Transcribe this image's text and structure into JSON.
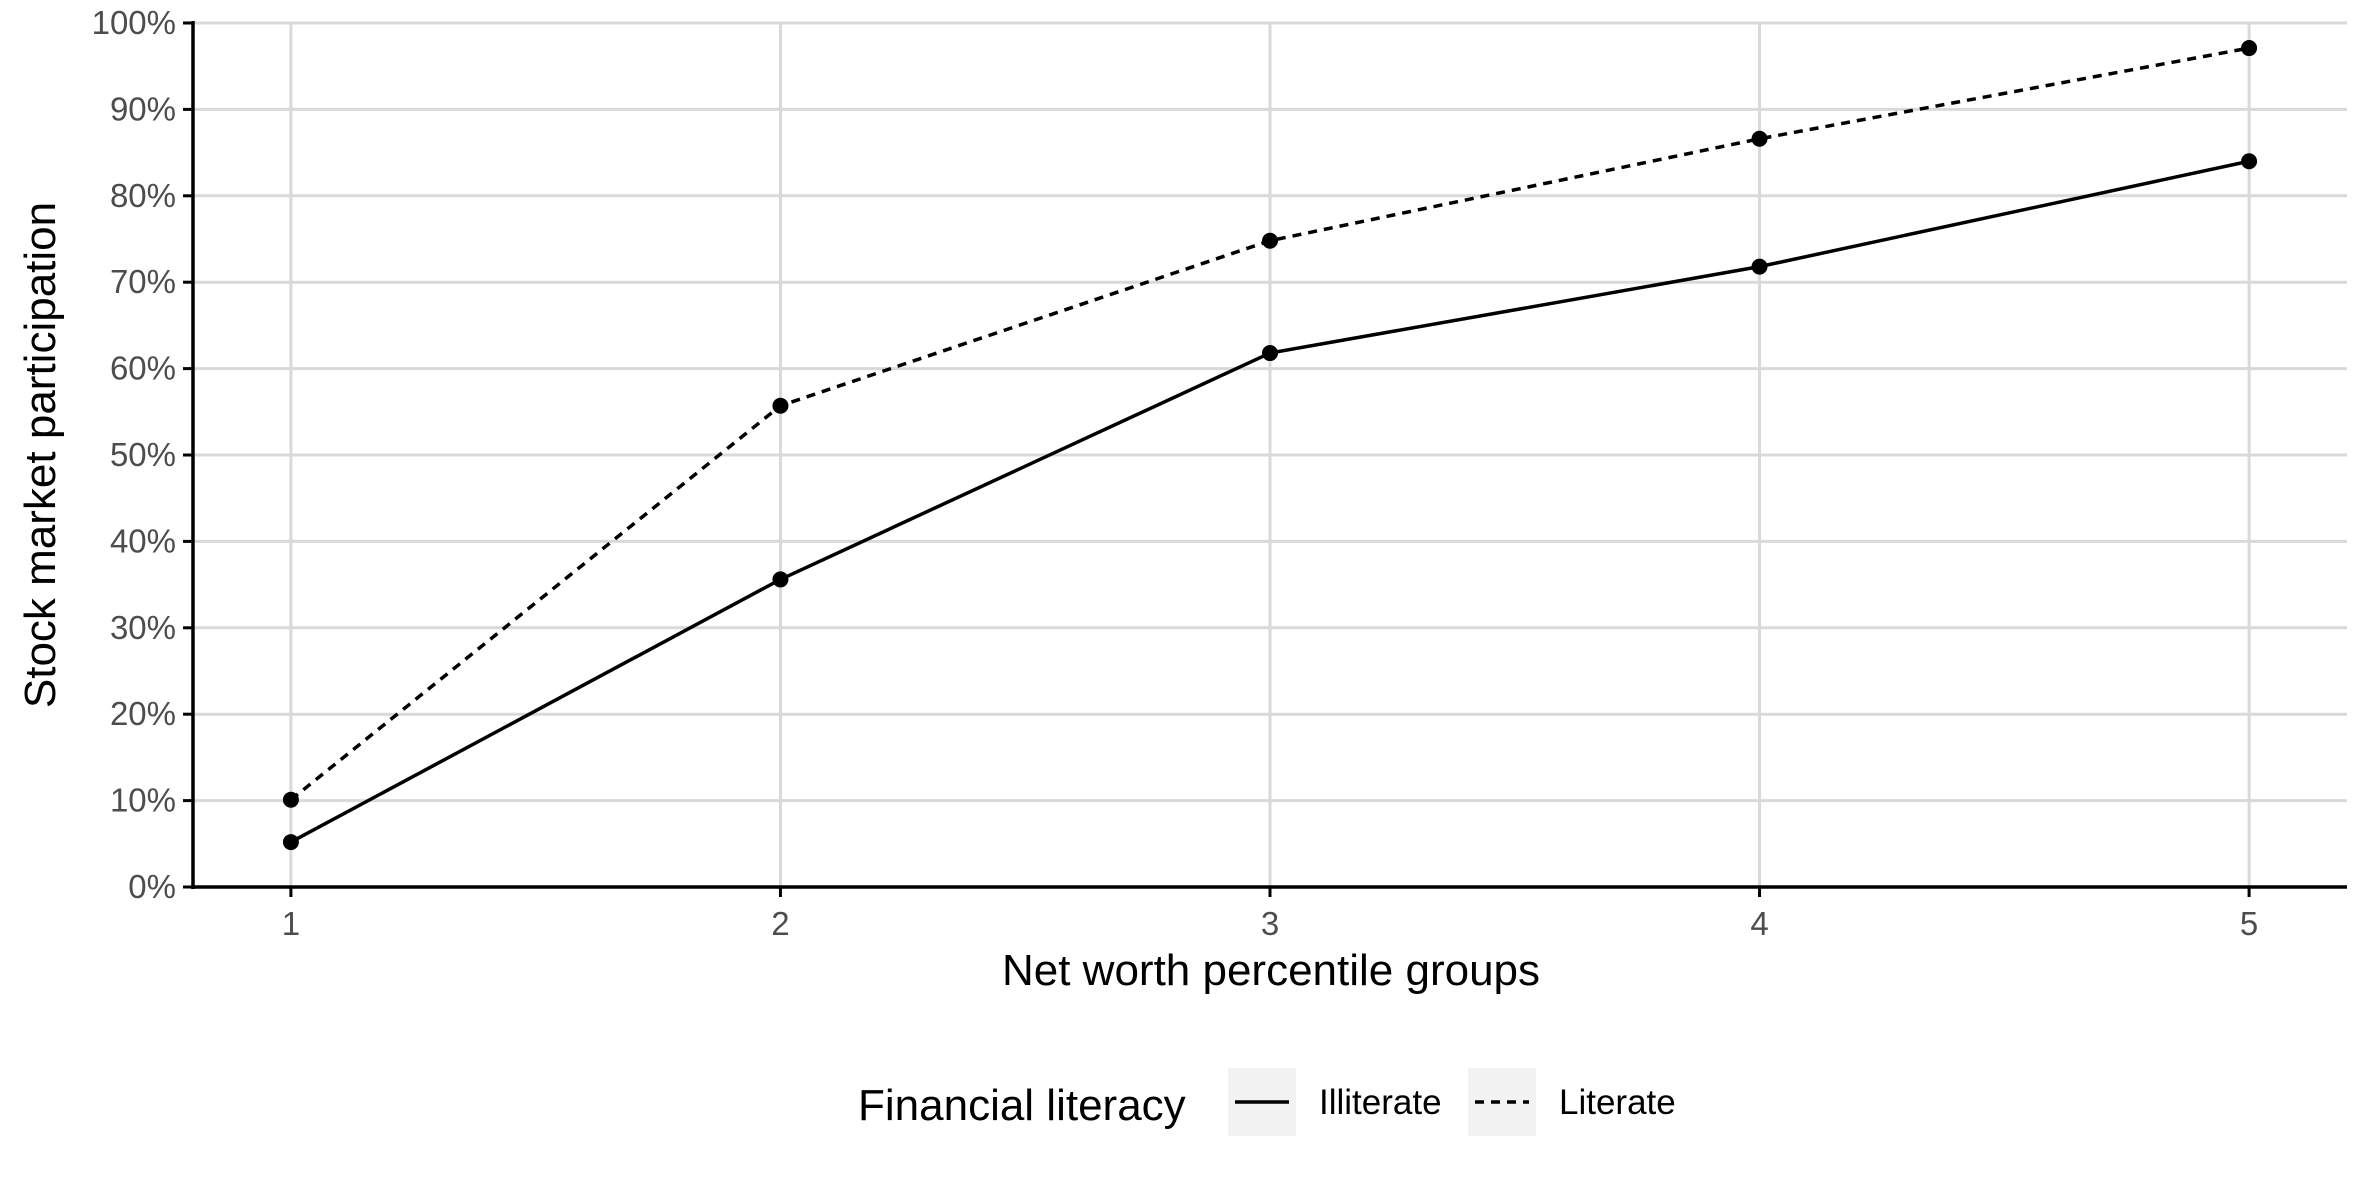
{
  "chart_data": {
    "type": "line",
    "x": [
      1,
      2,
      3,
      4,
      5
    ],
    "xlabel": "Net worth percentile groups",
    "ylabel": "Stock market participation",
    "xlim": [
      0.8,
      5.2
    ],
    "ylim": [
      0,
      100
    ],
    "x_ticks": [
      "1",
      "2",
      "3",
      "4",
      "5"
    ],
    "y_ticks": [
      "0%",
      "10%",
      "20%",
      "30%",
      "40%",
      "50%",
      "60%",
      "70%",
      "80%",
      "90%",
      "100%"
    ],
    "grid": true,
    "legend": {
      "title": "Financial literacy",
      "position": "bottom"
    },
    "series": [
      {
        "name": "Illiterate",
        "linestyle": "solid",
        "values": [
          5.2,
          35.6,
          61.8,
          71.8,
          84.0
        ]
      },
      {
        "name": "Literate",
        "linestyle": "dashed",
        "values": [
          10.1,
          55.7,
          74.8,
          86.6,
          97.1
        ]
      }
    ],
    "colors": {
      "line": "#000000",
      "grid": "#d9d9d9",
      "axis": "#000000",
      "legend_key_bg": "#f2f2f2"
    }
  }
}
